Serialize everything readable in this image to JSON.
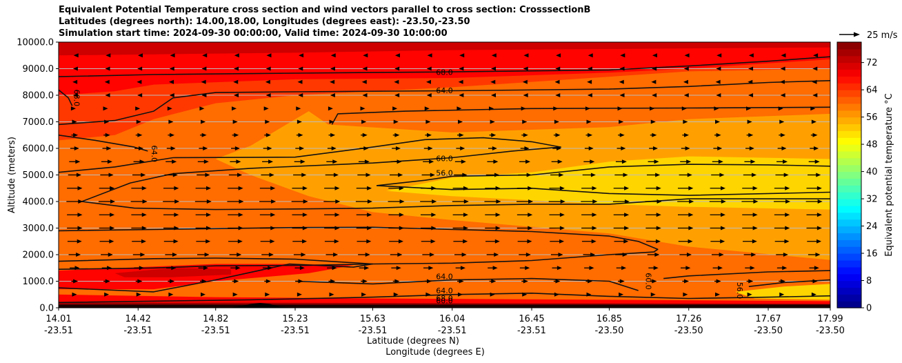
{
  "chart_data": {
    "type": "heatmap",
    "title_lines": [
      "Equivalent Potential Temperature cross section and wind vectors parallel to cross section: CrosssectionB",
      "Latitudes (degrees north): 14.00,18.00, Longitudes (degrees east): -23.50,-23.50",
      "Simulation start time: 2024-09-30 00:00:00, Valid time: 2024-09-30 10:00:00"
    ],
    "xlabel_lines": [
      "Latitude (degrees N)",
      "Longitude (degrees E)"
    ],
    "ylabel": "Altitude (meters)",
    "colorbar_label": "Equivalent potential temperature °C",
    "quiver_key_label": "25 m/s",
    "xlim": [
      14.01,
      17.99
    ],
    "ylim": [
      0,
      10000
    ],
    "x_ticks": [
      {
        "lat": "14.01",
        "lon": "-23.51",
        "value": 14.01
      },
      {
        "lat": "14.42",
        "lon": "-23.51",
        "value": 14.42
      },
      {
        "lat": "14.82",
        "lon": "-23.51",
        "value": 14.82
      },
      {
        "lat": "15.23",
        "lon": "-23.51",
        "value": 15.23
      },
      {
        "lat": "15.63",
        "lon": "-23.51",
        "value": 15.63
      },
      {
        "lat": "16.04",
        "lon": "-23.51",
        "value": 16.04
      },
      {
        "lat": "16.45",
        "lon": "-23.51",
        "value": 16.45
      },
      {
        "lat": "16.85",
        "lon": "-23.50",
        "value": 16.85
      },
      {
        "lat": "17.26",
        "lon": "-23.50",
        "value": 17.26
      },
      {
        "lat": "17.67",
        "lon": "-23.50",
        "value": 17.67
      },
      {
        "lat": "17.99",
        "lon": "-23.50",
        "value": 17.99
      }
    ],
    "y_ticks": [
      {
        "label": "0.0",
        "value": 0
      },
      {
        "label": "1000.0",
        "value": 1000
      },
      {
        "label": "2000.0",
        "value": 2000
      },
      {
        "label": "3000.0",
        "value": 3000
      },
      {
        "label": "4000.0",
        "value": 4000
      },
      {
        "label": "5000.0",
        "value": 5000
      },
      {
        "label": "6000.0",
        "value": 6000
      },
      {
        "label": "7000.0",
        "value": 7000
      },
      {
        "label": "8000.0",
        "value": 8000
      },
      {
        "label": "9000.0",
        "value": 9000
      },
      {
        "label": "10000.0",
        "value": 10000
      }
    ],
    "colorbar_ticks": [
      {
        "label": "0",
        "value": 0
      },
      {
        "label": "8",
        "value": 8
      },
      {
        "label": "16",
        "value": 16
      },
      {
        "label": "24",
        "value": 24
      },
      {
        "label": "32",
        "value": 32
      },
      {
        "label": "40",
        "value": 40
      },
      {
        "label": "48",
        "value": 48
      },
      {
        "label": "56",
        "value": 56
      },
      {
        "label": "64",
        "value": 64
      },
      {
        "label": "72",
        "value": 72
      }
    ],
    "colorbar_range": [
      0,
      78
    ],
    "grid": "horizontal",
    "contour_labels": [
      {
        "text": "68.0",
        "x": 16.0,
        "y": 8850
      },
      {
        "text": "64.0",
        "x": 16.0,
        "y": 8150
      },
      {
        "text": "68.0",
        "x": 14.1,
        "y": 7900,
        "rotate": 90
      },
      {
        "text": "64.0",
        "x": 14.5,
        "y": 5800,
        "rotate": 90
      },
      {
        "text": "60.0",
        "x": 16.0,
        "y": 5600
      },
      {
        "text": "56.0",
        "x": 16.0,
        "y": 5050
      },
      {
        "text": "64.0",
        "x": 16.0,
        "y": 1150
      },
      {
        "text": "64.0",
        "x": 16.0,
        "y": 620
      },
      {
        "text": "68.0",
        "x": 16.0,
        "y": 340
      },
      {
        "text": "60.0",
        "x": 16.0,
        "y": 250
      },
      {
        "text": "60.0",
        "x": 17.05,
        "y": 1000,
        "rotate": 90
      },
      {
        "text": "56.0",
        "x": 17.52,
        "y": 650,
        "rotate": 90
      }
    ],
    "contours": [
      {
        "level": 68,
        "points": [
          [
            14.01,
            8700
          ],
          [
            14.5,
            8780
          ],
          [
            15.23,
            8830
          ],
          [
            16.04,
            8880
          ],
          [
            16.85,
            8950
          ],
          [
            17.26,
            9100
          ],
          [
            17.67,
            9280
          ],
          [
            17.99,
            9450
          ]
        ]
      },
      {
        "level": 64,
        "points": [
          [
            14.01,
            6900
          ],
          [
            14.3,
            7050
          ],
          [
            14.5,
            7400
          ],
          [
            14.6,
            7900
          ],
          [
            14.82,
            8100
          ],
          [
            15.23,
            8130
          ],
          [
            16.04,
            8170
          ],
          [
            16.85,
            8230
          ],
          [
            17.26,
            8330
          ],
          [
            17.67,
            8480
          ],
          [
            17.99,
            8550
          ]
        ]
      },
      {
        "level": 68,
        "points": [
          [
            14.01,
            8200
          ],
          [
            14.06,
            7900
          ],
          [
            14.08,
            7600
          ]
        ]
      },
      {
        "level": 64,
        "points": [
          [
            14.01,
            6500
          ],
          [
            14.2,
            6300
          ],
          [
            14.4,
            6050
          ],
          [
            14.47,
            5900
          ]
        ]
      },
      {
        "level": 60,
        "points": [
          [
            15.42,
            6900
          ],
          [
            15.45,
            7300
          ],
          [
            15.8,
            7400
          ],
          [
            16.45,
            7500
          ],
          [
            17.26,
            7520
          ],
          [
            17.99,
            7550
          ]
        ]
      },
      {
        "level": 60,
        "points": [
          [
            14.01,
            5100
          ],
          [
            14.3,
            5300
          ],
          [
            14.6,
            5650
          ],
          [
            15.23,
            5670
          ],
          [
            15.63,
            6050
          ],
          [
            15.9,
            6330
          ],
          [
            16.2,
            6400
          ],
          [
            16.45,
            6250
          ],
          [
            16.6,
            6050
          ],
          [
            16.35,
            5900
          ],
          [
            16.04,
            5650
          ],
          [
            15.63,
            5450
          ],
          [
            15.0,
            5250
          ],
          [
            14.6,
            5050
          ],
          [
            14.38,
            4700
          ],
          [
            14.13,
            4000
          ]
        ]
      },
      {
        "level": 56,
        "points": [
          [
            14.13,
            4000
          ],
          [
            14.4,
            3750
          ],
          [
            14.82,
            3700
          ],
          [
            15.23,
            3720
          ],
          [
            15.63,
            3750
          ],
          [
            16.04,
            3850
          ],
          [
            16.45,
            3900
          ],
          [
            16.85,
            3900
          ],
          [
            17.26,
            4100
          ],
          [
            17.67,
            4100
          ],
          [
            17.99,
            4100
          ]
        ]
      },
      {
        "level": 56,
        "points": [
          [
            15.65,
            4600
          ],
          [
            15.9,
            4800
          ],
          [
            16.04,
            4950
          ],
          [
            16.45,
            5000
          ],
          [
            16.85,
            5300
          ],
          [
            17.26,
            5400
          ],
          [
            17.67,
            5380
          ],
          [
            17.99,
            5330
          ]
        ]
      },
      {
        "level": 56,
        "points": [
          [
            15.65,
            4600
          ],
          [
            16.04,
            4450
          ],
          [
            16.45,
            4500
          ],
          [
            16.85,
            4300
          ],
          [
            17.26,
            4230
          ],
          [
            17.99,
            4350
          ]
        ]
      },
      {
        "level": 64,
        "points": [
          [
            14.01,
            2900
          ],
          [
            14.82,
            2980
          ],
          [
            15.23,
            3020
          ],
          [
            15.63,
            3030
          ],
          [
            16.04,
            2950
          ],
          [
            16.45,
            2870
          ],
          [
            16.85,
            2700
          ],
          [
            17.0,
            2500
          ],
          [
            17.1,
            2200
          ],
          [
            17.08,
            2100
          ],
          [
            16.85,
            2000
          ],
          [
            16.45,
            1780
          ],
          [
            16.04,
            1680
          ],
          [
            15.63,
            1650
          ],
          [
            15.3,
            1600
          ],
          [
            14.82,
            1580
          ],
          [
            14.5,
            1500
          ],
          [
            14.01,
            1450
          ]
        ]
      },
      {
        "level": 64,
        "points": [
          [
            14.01,
            1750
          ],
          [
            14.5,
            1850
          ],
          [
            14.82,
            1870
          ],
          [
            15.23,
            1830
          ],
          [
            15.63,
            1650
          ],
          [
            15.53,
            1530
          ],
          [
            15.2,
            1650
          ],
          [
            14.82,
            1050
          ],
          [
            14.5,
            600
          ],
          [
            14.01,
            750
          ]
        ]
      },
      {
        "level": 64,
        "points": [
          [
            15.23,
            1000
          ],
          [
            15.63,
            900
          ],
          [
            16.04,
            1050
          ],
          [
            16.45,
            1100
          ],
          [
            16.85,
            1000
          ],
          [
            17.0,
            650
          ]
        ]
      },
      {
        "level": 60,
        "points": [
          [
            17.13,
            1100
          ],
          [
            17.26,
            1200
          ],
          [
            17.67,
            1350
          ],
          [
            17.99,
            1400
          ]
        ]
      },
      {
        "level": 56,
        "points": [
          [
            17.57,
            800
          ],
          [
            17.75,
            950
          ],
          [
            17.99,
            1050
          ]
        ]
      },
      {
        "level": 60,
        "points": [
          [
            14.01,
            200
          ],
          [
            15.0,
            300
          ],
          [
            15.63,
            400
          ],
          [
            16.04,
            500
          ],
          [
            16.45,
            550
          ],
          [
            16.85,
            430
          ],
          [
            17.26,
            350
          ],
          [
            17.67,
            400
          ],
          [
            17.99,
            450
          ]
        ]
      }
    ],
    "terrain": [
      [
        14.9,
        0
      ],
      [
        14.95,
        60
      ],
      [
        15.0,
        130
      ],
      [
        15.05,
        170
      ],
      [
        15.1,
        130
      ],
      [
        15.15,
        30
      ],
      [
        15.2,
        0
      ]
    ],
    "wind_field_mps": [
      {
        "altitude": 9500,
        "u": -2
      },
      {
        "altitude": 9000,
        "u": -3
      },
      {
        "altitude": 8500,
        "u": -4
      },
      {
        "altitude": 8000,
        "u": -3
      },
      {
        "altitude": 7500,
        "u": 2
      },
      {
        "altitude": 7000,
        "u": 4
      },
      {
        "altitude": 6500,
        "u": 6
      },
      {
        "altitude": 6000,
        "u": 8
      },
      {
        "altitude": 5500,
        "u": 10
      },
      {
        "altitude": 5000,
        "u": 12
      },
      {
        "altitude": 4500,
        "u": 14
      },
      {
        "altitude": 4000,
        "u": 15
      },
      {
        "altitude": 3500,
        "u": 14
      },
      {
        "altitude": 3000,
        "u": 14
      },
      {
        "altitude": 2500,
        "u": 13
      },
      {
        "altitude": 2000,
        "u": 11
      },
      {
        "altitude": 1500,
        "u": 9
      },
      {
        "altitude": 1000,
        "u": 6
      },
      {
        "altitude": 500,
        "u": 4
      }
    ],
    "wind_columns": 24
  }
}
